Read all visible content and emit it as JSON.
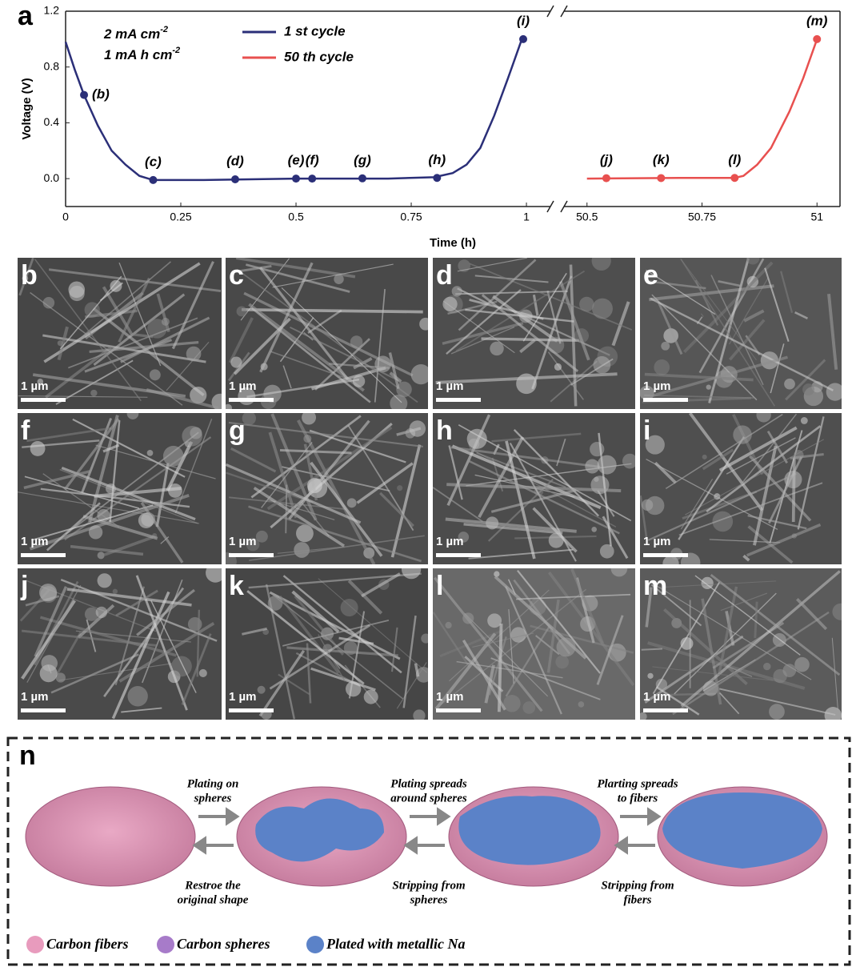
{
  "chart_data": {
    "type": "line",
    "panel_label": "a",
    "xlabel": "Time (h)",
    "ylabel": "Voltage (V)",
    "annotations": [
      {
        "text": "2 mA cm",
        "sup": "-2"
      },
      {
        "text": "1 mA h cm",
        "sup": "-2"
      }
    ],
    "ylim": [
      -0.2,
      1.2
    ],
    "yticks": [
      {
        "value": 0,
        "label": "0.0"
      },
      0.4,
      0.8,
      1.2
    ],
    "segments": [
      {
        "xlim": [
          0,
          1.052
        ],
        "xticks": [
          0,
          0.25,
          0.5,
          0.75,
          1
        ]
      },
      {
        "xlim": [
          50.45,
          51.05
        ],
        "xticks": [
          50.5,
          50.75,
          51
        ]
      }
    ],
    "series": [
      {
        "name": "1 st cycle",
        "color": "#2b2f78",
        "x": [
          0,
          0.02,
          0.04,
          0.07,
          0.1,
          0.13,
          0.16,
          0.19,
          0.3,
          0.5,
          0.7,
          0.8,
          0.84,
          0.87,
          0.9,
          0.93,
          0.96,
          0.99
        ],
        "values": [
          0.98,
          0.78,
          0.6,
          0.38,
          0.2,
          0.1,
          0.02,
          -0.01,
          -0.01,
          0,
          0,
          0.01,
          0.04,
          0.1,
          0.22,
          0.45,
          0.72,
          1.0
        ],
        "points": {
          "x": [
            0.04,
            0.19,
            0.368,
            0.5,
            0.535,
            0.644,
            0.806,
            0.993
          ],
          "values": [
            0.6,
            -0.01,
            -0.005,
            0,
            0,
            0.002,
            0.005,
            1.0
          ],
          "labels": [
            "(b)",
            "(c)",
            "(d)",
            "(e)",
            "(f)",
            "(g)",
            "(h)",
            "(i)"
          ]
        }
      },
      {
        "name": "50 th cycle",
        "color": "#e8504f",
        "x": [
          50.5,
          50.7,
          50.82,
          50.84,
          50.87,
          50.9,
          50.94,
          50.97,
          51
        ],
        "values": [
          0,
          0.005,
          0.005,
          0.02,
          0.1,
          0.22,
          0.48,
          0.72,
          1.0
        ],
        "points": {
          "x": [
            50.542,
            50.661,
            50.821,
            51
          ],
          "values": [
            0.003,
            0.004,
            0.005,
            1.0
          ],
          "labels": [
            "(j)",
            "(k)",
            "(l)",
            "(m)"
          ]
        }
      }
    ]
  },
  "sem_panels": [
    {
      "label": "b",
      "scale": "1 µm"
    },
    {
      "label": "c",
      "scale": "1 µm"
    },
    {
      "label": "d",
      "scale": "1 µm"
    },
    {
      "label": "e",
      "scale": "1 µm"
    },
    {
      "label": "f",
      "scale": "1 µm"
    },
    {
      "label": "g",
      "scale": "1 µm"
    },
    {
      "label": "h",
      "scale": "1 µm"
    },
    {
      "label": "i",
      "scale": "1 µm"
    },
    {
      "label": "j",
      "scale": "1 µm"
    },
    {
      "label": "k",
      "scale": "1 µm"
    },
    {
      "label": "l",
      "scale": "1 µm"
    },
    {
      "label": "m",
      "scale": "1 µm"
    }
  ],
  "schematic": {
    "label": "n",
    "top_captions": [
      [
        "Plating on",
        "spheres"
      ],
      [
        "Plating spreads",
        "around spheres"
      ],
      [
        "Plarting spreads",
        "to fibers"
      ]
    ],
    "bottom_captions": [
      [
        "Restroe the",
        "original shape"
      ],
      [
        "Stripping from",
        "spheres"
      ],
      [
        "Stripping from",
        "fibers"
      ]
    ],
    "legend": [
      {
        "name": "Carbon fibers",
        "color": "#e89bbd"
      },
      {
        "name": "Carbon spheres",
        "color": "#a77bc9"
      },
      {
        "name": "Plated with metallic Na",
        "color": "#5b82c8"
      }
    ]
  }
}
